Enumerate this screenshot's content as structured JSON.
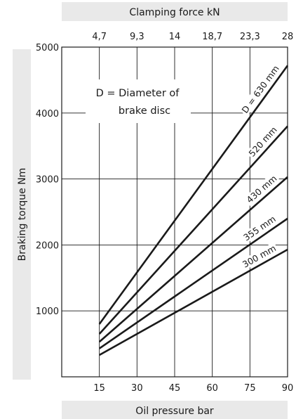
{
  "chart_data": {
    "type": "line",
    "top_axis_label": "Clamping force kN",
    "top_tick_labels": [
      "4,7",
      "9,3",
      "14",
      "18,7",
      "23,3",
      "28"
    ],
    "xlabel": "Oil pressure bar",
    "ylabel": "Braking torque Nm",
    "x_ticks": [
      15,
      30,
      45,
      60,
      75,
      90
    ],
    "y_ticks": [
      1000,
      2000,
      3000,
      4000,
      5000
    ],
    "xlim": [
      0,
      90
    ],
    "ylim": [
      0,
      5000
    ],
    "grid": "horizontal and vertical at ticks",
    "annotation": [
      "D = Diameter of",
      "brake disc"
    ],
    "series": [
      {
        "name": "D = 630 mm",
        "x": [
          15,
          90
        ],
        "y": [
          800,
          4720
        ]
      },
      {
        "name": "520 mm",
        "x": [
          15,
          90
        ],
        "y": [
          650,
          3800
        ]
      },
      {
        "name": "430 mm",
        "x": [
          15,
          90
        ],
        "y": [
          530,
          3030
        ]
      },
      {
        "name": "355 mm",
        "x": [
          15,
          90
        ],
        "y": [
          430,
          2400
        ]
      },
      {
        "name": "300 mm",
        "x": [
          15,
          90
        ],
        "y": [
          330,
          1930
        ]
      }
    ]
  }
}
